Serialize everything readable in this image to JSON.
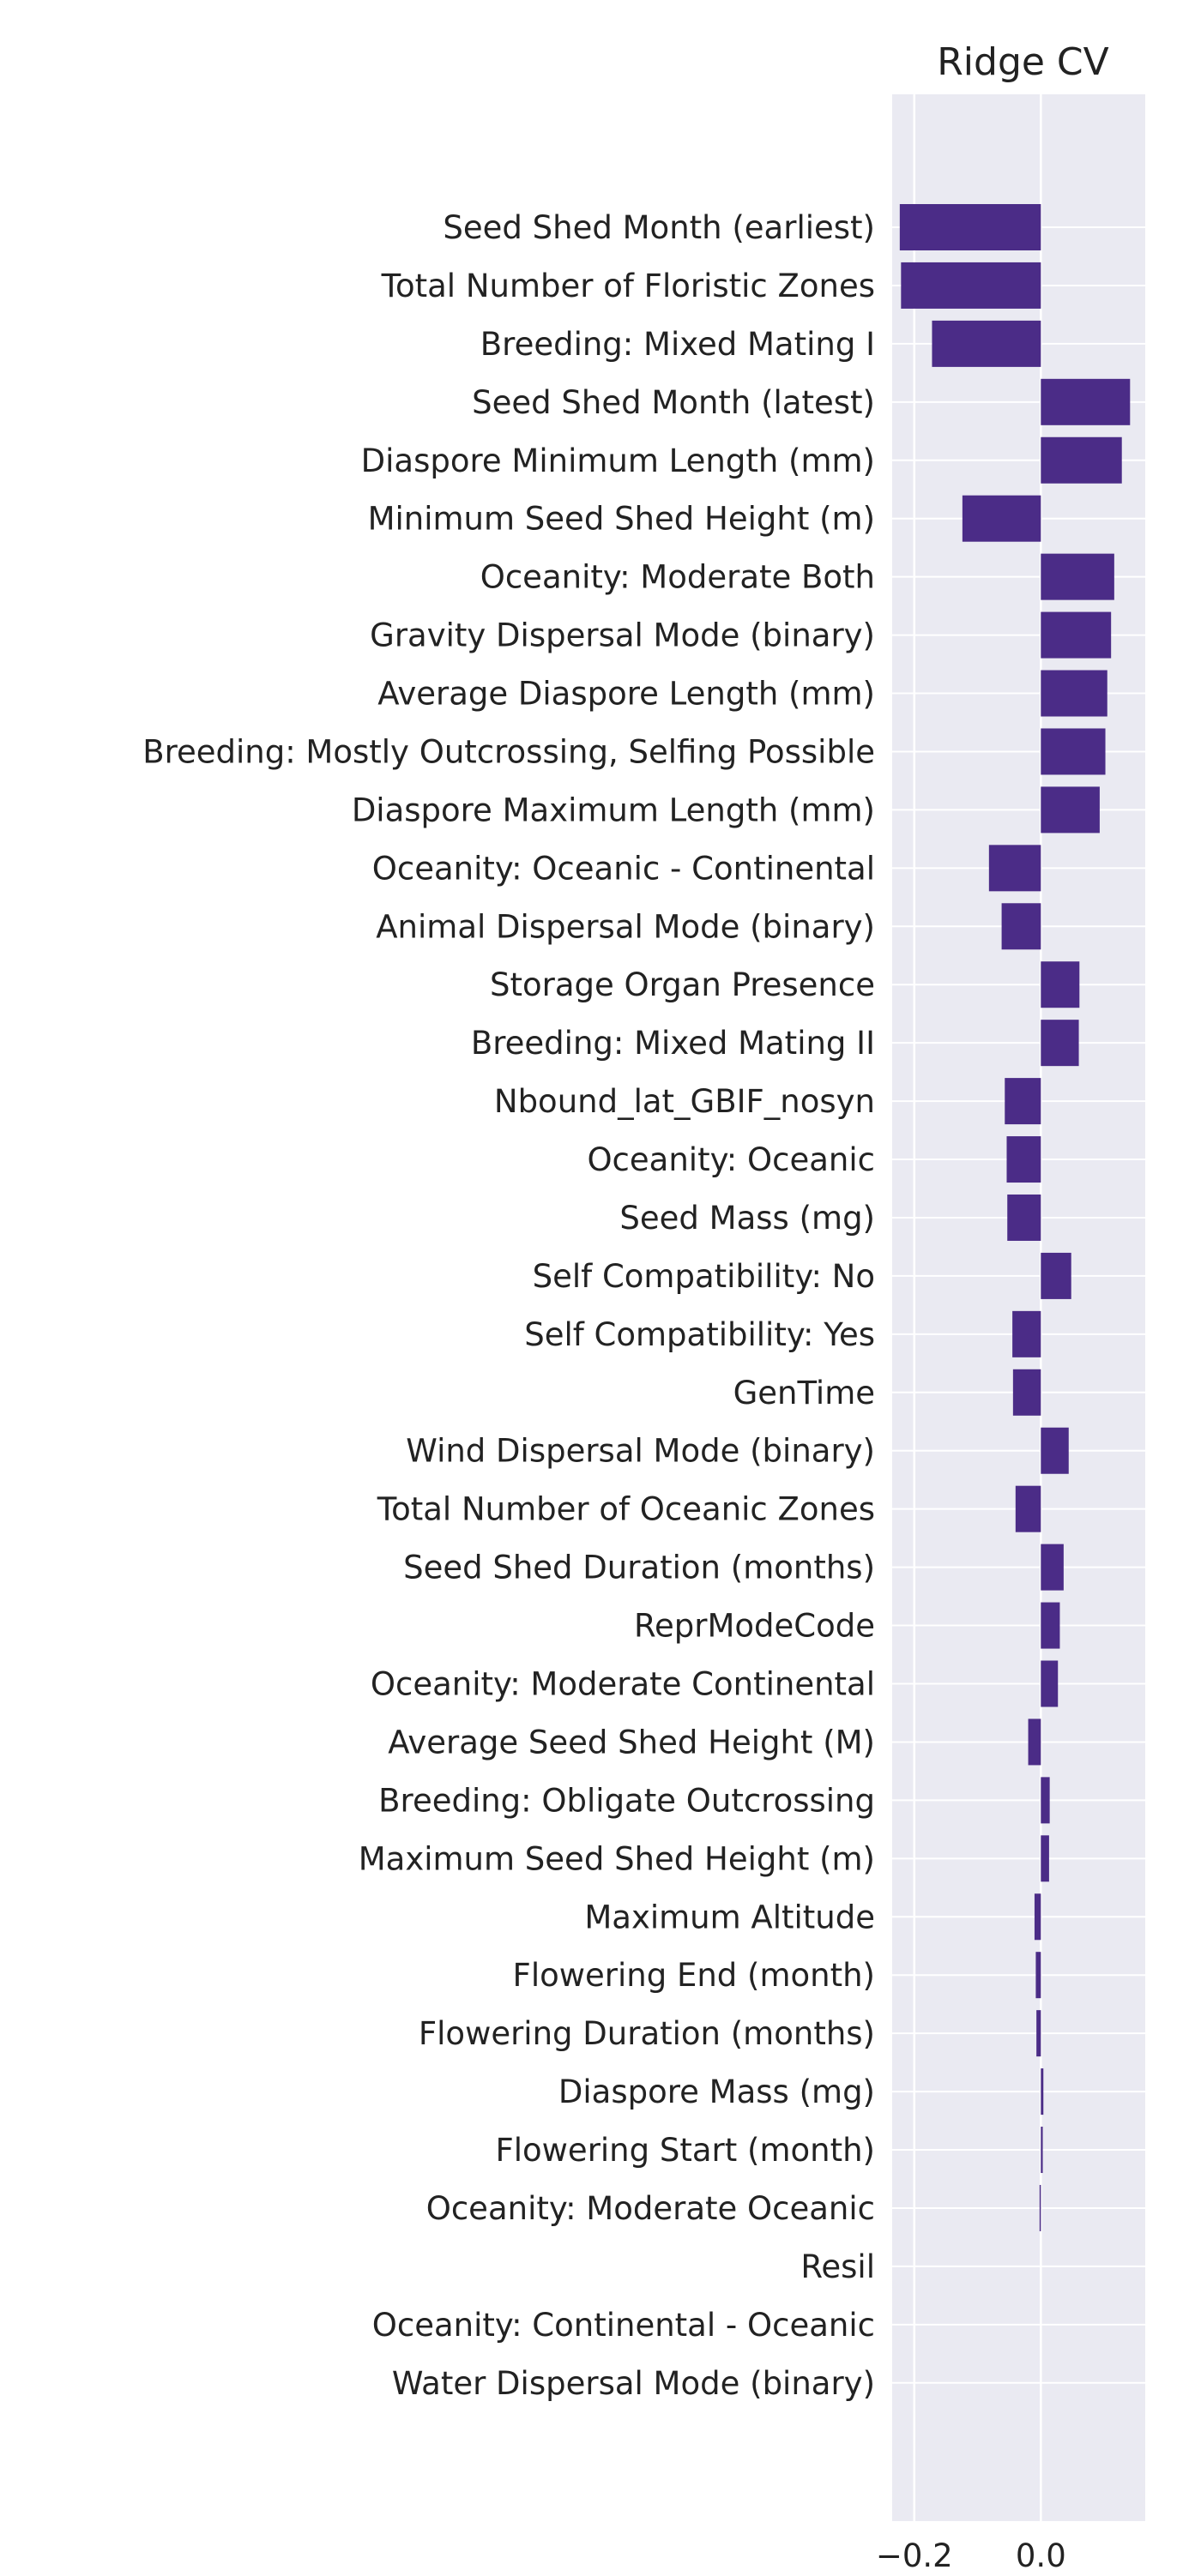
{
  "chart_data": {
    "type": "bar",
    "orientation": "horizontal",
    "title": "Ridge CV",
    "xlabel": "",
    "ylabel": "",
    "xlim": [
      -0.235,
      0.165
    ],
    "xticks": [
      -0.2,
      0.0
    ],
    "xtick_labels": [
      "−0.2",
      "0.0"
    ],
    "grid": true,
    "legend": "none",
    "colors": {
      "bar": "#4b2c87",
      "plot_background": "#eaeaf2",
      "grid": "#ffffff",
      "text": "#222222"
    },
    "categories": [
      "Seed Shed Month (earliest)",
      "Total Number of Floristic Zones",
      "Breeding: Mixed Mating I ",
      "Seed Shed Month (latest)",
      "Diaspore Minimum Length (mm)",
      "Minimum Seed Shed Height (m)",
      "Oceanity: Moderate Both",
      "Gravity Dispersal Mode (binary)",
      "Average Diaspore Length (mm)",
      "Breeding: Mostly Outcrossing, Selfing Possible",
      "Diaspore Maximum Length (mm)",
      "Oceanity: Oceanic - Continental",
      "Animal Dispersal Mode (binary)",
      "Storage Organ Presence",
      "Breeding: Mixed Mating II",
      "Nbound_lat_GBIF_nosyn",
      "Oceanity: Oceanic",
      "Seed Mass (mg)",
      "Self Compatibility: No",
      "Self Compatibility: Yes",
      "GenTime",
      "Wind Dispersal Mode (binary)",
      "Total Number of Oceanic Zones",
      "Seed Shed Duration (months)",
      "ReprModeCode",
      "Oceanity: Moderate Continental",
      "Average Seed Shed Height (M)",
      "Breeding: Obligate Outcrossing",
      "Maximum Seed Shed Height (m)",
      "Maximum Altitude",
      "Flowering End (month)",
      "Flowering Duration (months)",
      "Diaspore Mass (mg)",
      "Flowering Start (month)",
      "Oceanity: Moderate Oceanic",
      "Resil",
      "Oceanity: Continental - Oceanic",
      "Water Dispersal Mode (binary)"
    ],
    "values": [
      -0.223,
      -0.221,
      -0.172,
      0.141,
      0.128,
      -0.124,
      0.116,
      0.111,
      0.105,
      0.102,
      0.093,
      -0.082,
      -0.062,
      0.061,
      0.06,
      -0.057,
      -0.054,
      -0.053,
      0.048,
      -0.045,
      -0.044,
      0.044,
      -0.04,
      0.036,
      0.03,
      0.027,
      -0.02,
      0.014,
      0.013,
      -0.01,
      -0.008,
      -0.007,
      0.004,
      0.003,
      -0.002,
      0.0,
      0.0,
      0.0
    ]
  }
}
